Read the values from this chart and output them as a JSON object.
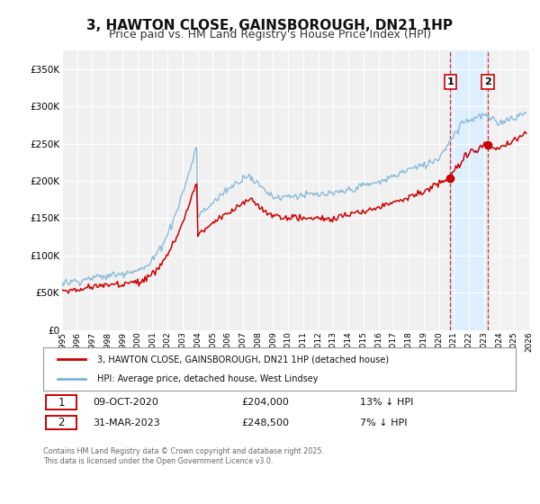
{
  "title": "3, HAWTON CLOSE, GAINSBOROUGH, DN21 1HP",
  "subtitle": "Price paid vs. HM Land Registry's House Price Index (HPI)",
  "title_fontsize": 11,
  "subtitle_fontsize": 9,
  "bg_color": "#ffffff",
  "plot_bg_color": "#f0f0f0",
  "grid_color": "#ffffff",
  "hpi_color": "#7ab3d8",
  "price_color": "#cc0000",
  "legend_label_price": "3, HAWTON CLOSE, GAINSBOROUGH, DN21 1HP (detached house)",
  "legend_label_hpi": "HPI: Average price, detached house, West Lindsey",
  "sale1_date": "09-OCT-2020",
  "sale1_price": "£204,000",
  "sale1_hpi": "13% ↓ HPI",
  "sale1_x": 2020.77,
  "sale1_y": 204000,
  "sale2_date": "31-MAR-2023",
  "sale2_price": "£248,500",
  "sale2_hpi": "7% ↓ HPI",
  "sale2_x": 2023.25,
  "sale2_y": 248500,
  "ylim": [
    0,
    375000
  ],
  "xlim": [
    1995,
    2026
  ],
  "yticks": [
    0,
    50000,
    100000,
    150000,
    200000,
    250000,
    300000,
    350000
  ],
  "ytick_labels": [
    "£0",
    "£50K",
    "£100K",
    "£150K",
    "£200K",
    "£250K",
    "£300K",
    "£350K"
  ],
  "xticks": [
    1995,
    1996,
    1997,
    1998,
    1999,
    2000,
    2001,
    2002,
    2003,
    2004,
    2005,
    2006,
    2007,
    2008,
    2009,
    2010,
    2011,
    2012,
    2013,
    2014,
    2015,
    2016,
    2017,
    2018,
    2019,
    2020,
    2021,
    2022,
    2023,
    2024,
    2025,
    2026
  ],
  "footer": "Contains HM Land Registry data © Crown copyright and database right 2025.\nThis data is licensed under the Open Government Licence v3.0.",
  "shade_start": 2020.77,
  "shade_end": 2023.25
}
